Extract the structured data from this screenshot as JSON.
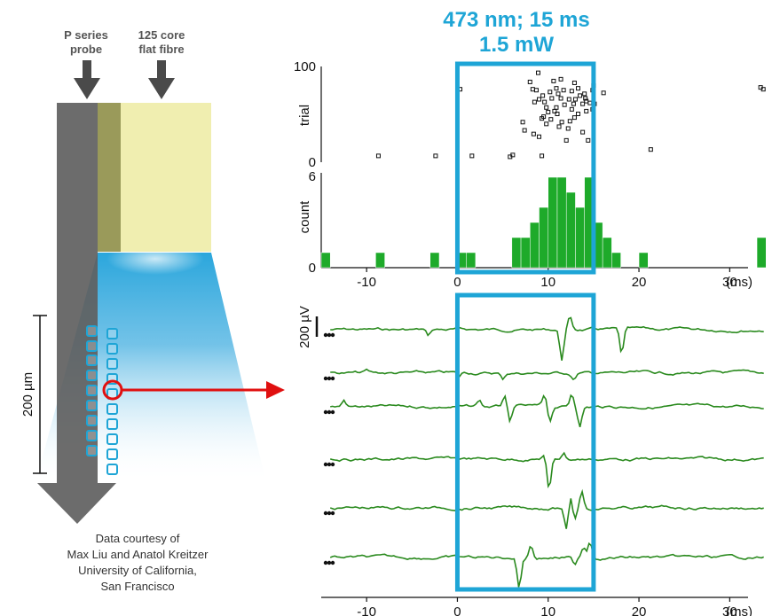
{
  "stimulus": {
    "line1": "473 nm; 15 ms",
    "line2": "1.5 mW",
    "start_ms": 0,
    "end_ms": 15,
    "color": "#1ea5d6"
  },
  "probe": {
    "label1_line1": "P series",
    "label1_line2": "probe",
    "label2_line1": "125 core",
    "label2_line2": "flat fibre",
    "scale_label": "200 µm",
    "colors": {
      "probe": "#606060",
      "fibre": "#f0eeb0",
      "fibre_edge": "#9a9a5a",
      "light": "#2aa6dc",
      "site": "#1ea5d6",
      "highlight": "#e01010"
    }
  },
  "credit": {
    "line1": "Data courtesy of",
    "line2": "Max Liu and Anatol Kreitzer",
    "line3": "University of California,",
    "line4": "San Francisco"
  },
  "chart_data": [
    {
      "type": "scatter",
      "name": "raster",
      "ylabel": "trial",
      "ylim": [
        0,
        100
      ],
      "xlim": [
        -15,
        35
      ],
      "yticks": [
        "100",
        "0"
      ],
      "points": [
        [
          0.3,
          77
        ],
        [
          -8.7,
          4
        ],
        [
          -2.4,
          4
        ],
        [
          1.6,
          4
        ],
        [
          5.8,
          3
        ],
        [
          6.1,
          5
        ],
        [
          9.3,
          4
        ],
        [
          21.3,
          11
        ],
        [
          33.4,
          79
        ],
        [
          33.7,
          77
        ],
        [
          7.2,
          41
        ],
        [
          7.4,
          32
        ],
        [
          8.4,
          28
        ],
        [
          9.0,
          25
        ],
        [
          9.3,
          45
        ],
        [
          9.8,
          39
        ],
        [
          10.3,
          44
        ],
        [
          10.7,
          53
        ],
        [
          11.0,
          50
        ],
        [
          11.5,
          41
        ],
        [
          12.2,
          34
        ],
        [
          12.9,
          46
        ],
        [
          13.3,
          50
        ],
        [
          14.2,
          53
        ],
        [
          14.4,
          21
        ],
        [
          12.0,
          21
        ],
        [
          13.8,
          61
        ],
        [
          12.8,
          61
        ],
        [
          8.9,
          95
        ],
        [
          8.3,
          77
        ],
        [
          8.7,
          76
        ],
        [
          9.4,
          70
        ],
        [
          10.2,
          74
        ],
        [
          10.9,
          78
        ],
        [
          11.1,
          72
        ],
        [
          11.7,
          76
        ],
        [
          12.6,
          75
        ],
        [
          13.3,
          78
        ],
        [
          14.0,
          72
        ],
        [
          16.1,
          73
        ],
        [
          14.9,
          76
        ],
        [
          8.5,
          63
        ],
        [
          9.6,
          63
        ],
        [
          10.4,
          67
        ],
        [
          11.4,
          67
        ],
        [
          12.3,
          66
        ],
        [
          13.0,
          66
        ],
        [
          14.1,
          67
        ],
        [
          9.8,
          57
        ],
        [
          10.9,
          57
        ],
        [
          11.8,
          60
        ],
        [
          10.0,
          52
        ],
        [
          12.6,
          55
        ],
        [
          14.6,
          62
        ],
        [
          15.1,
          61
        ],
        [
          11.2,
          36
        ],
        [
          9.5,
          47
        ],
        [
          13.8,
          30
        ],
        [
          12.4,
          42
        ],
        [
          14.9,
          55
        ],
        [
          8.0,
          85
        ],
        [
          10.6,
          86
        ],
        [
          12.9,
          84
        ],
        [
          13.5,
          70
        ],
        [
          15.0,
          81
        ],
        [
          9.0,
          66
        ],
        [
          11.4,
          88
        ],
        [
          14.2,
          64
        ]
      ]
    },
    {
      "type": "bar",
      "name": "histogram",
      "ylabel": "count",
      "ylim": [
        0,
        6
      ],
      "yticks": [
        "6",
        "0"
      ],
      "bin_width_ms": 1,
      "bins": [
        {
          "start": -15,
          "count": 1
        },
        {
          "start": -9,
          "count": 1
        },
        {
          "start": -3,
          "count": 1
        },
        {
          "start": 0,
          "count": 1
        },
        {
          "start": 1,
          "count": 1
        },
        {
          "start": 6,
          "count": 2
        },
        {
          "start": 7,
          "count": 2
        },
        {
          "start": 8,
          "count": 3
        },
        {
          "start": 9,
          "count": 4
        },
        {
          "start": 10,
          "count": 6
        },
        {
          "start": 11,
          "count": 6
        },
        {
          "start": 12,
          "count": 5
        },
        {
          "start": 13,
          "count": 4
        },
        {
          "start": 14,
          "count": 6
        },
        {
          "start": 15,
          "count": 3
        },
        {
          "start": 16,
          "count": 2
        },
        {
          "start": 17,
          "count": 1
        },
        {
          "start": 20,
          "count": 1
        },
        {
          "start": 33,
          "count": 2
        }
      ],
      "bar_color": "#1eaa2a"
    },
    {
      "type": "line",
      "name": "voltage-traces",
      "xlim": [
        -15,
        35
      ],
      "xticks": [
        "-10",
        "0",
        "10",
        "20",
        "30"
      ],
      "xunit": "(ms)",
      "scale_bar_label": "200 µV",
      "scale_bar_uv": 200,
      "trace_color": "#2a8a1e",
      "traces": [
        {
          "spikes": [
            [
              11.5,
              -1.4
            ],
            [
              12.4,
              0.6
            ],
            [
              18.1,
              -1.2
            ],
            [
              -3.2,
              -0.3
            ]
          ]
        },
        {
          "spikes": [
            [
              0.2,
              -0.2
            ],
            [
              5.0,
              -0.3
            ],
            [
              12.8,
              -0.3
            ],
            [
              -10,
              0.1
            ]
          ]
        },
        {
          "spikes": [
            [
              2.4,
              0.3
            ],
            [
              5.2,
              0.5
            ],
            [
              5.8,
              -0.8
            ],
            [
              9.6,
              0.5
            ],
            [
              10.2,
              -0.7
            ],
            [
              12.6,
              0.6
            ],
            [
              13.5,
              -0.9
            ],
            [
              -12.5,
              0.3
            ]
          ]
        },
        {
          "spikes": [
            [
              10.1,
              -1.5
            ],
            [
              9.5,
              0.2
            ],
            [
              11.7,
              0.3
            ]
          ]
        },
        {
          "spikes": [
            [
              12.0,
              -1.1
            ],
            [
              12.5,
              0.6
            ],
            [
              13.7,
              0.8
            ],
            [
              12.9,
              -0.6
            ]
          ]
        },
        {
          "spikes": [
            [
              6.8,
              -1.4
            ],
            [
              8.1,
              0.6
            ],
            [
              12.9,
              -0.4
            ],
            [
              13.9,
              0.5
            ],
            [
              14.6,
              0.8
            ]
          ]
        }
      ]
    }
  ]
}
